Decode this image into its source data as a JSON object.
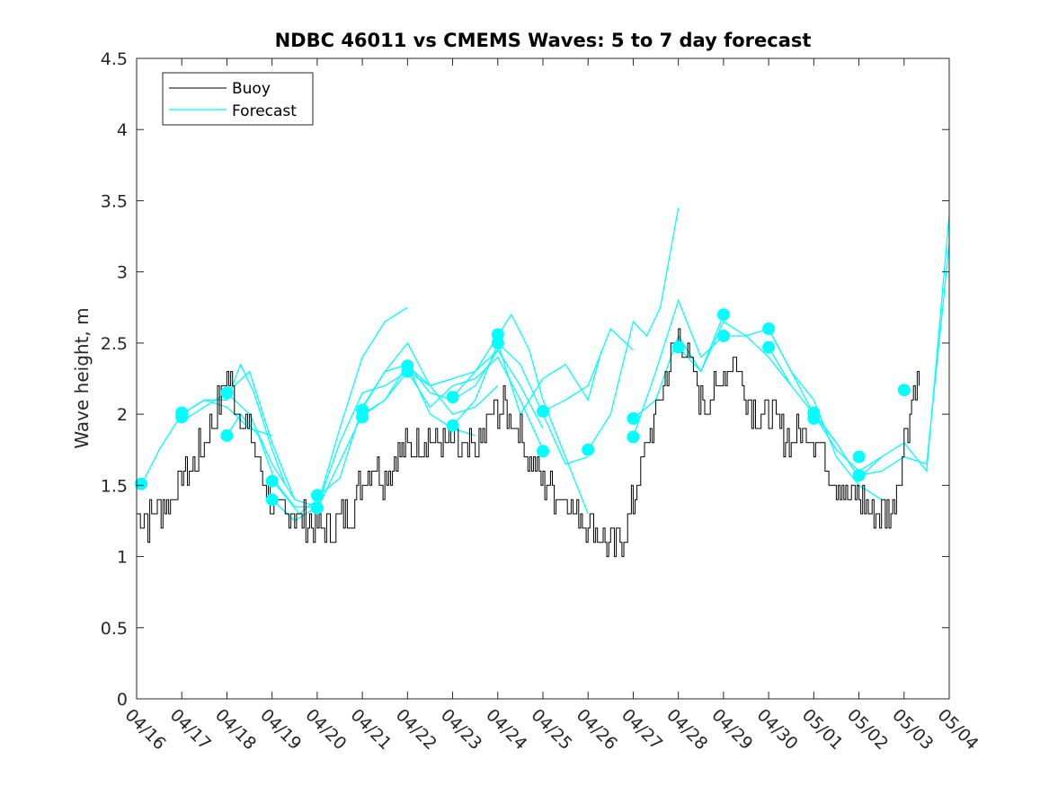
{
  "chart_data": {
    "type": "line",
    "title": "NDBC 46011 vs CMEMS Waves: 5 to 7 day forecast",
    "xlabel": "",
    "ylabel": "Wave height, m",
    "xlim": [
      "04/16",
      "05/04"
    ],
    "ylim": [
      0,
      4.5
    ],
    "x_tick_labels": [
      "04/16",
      "04/17",
      "04/18",
      "04/19",
      "04/20",
      "04/21",
      "04/22",
      "04/23",
      "04/24",
      "04/25",
      "04/26",
      "04/27",
      "04/28",
      "04/29",
      "04/30",
      "05/01",
      "05/02",
      "05/03",
      "05/04"
    ],
    "y_ticks": [
      0,
      0.5,
      1,
      1.5,
      2,
      2.5,
      3,
      3.5,
      4,
      4.5
    ],
    "y_tick_labels": [
      "0",
      "0.5",
      "1",
      "1.5",
      "2",
      "2.5",
      "3",
      "3.5",
      "4",
      "4.5"
    ],
    "grid": false,
    "legend_position": "top-left",
    "colors": {
      "buoy": "#000000",
      "forecast": "#00ffff"
    },
    "series": [
      {
        "name": "Buoy",
        "color": "#000000",
        "x_days_after_04_16": [
          0,
          0.25,
          0.5,
          0.75,
          1,
          1.25,
          1.5,
          1.75,
          2,
          2.1,
          2.25,
          2.5,
          2.75,
          3,
          3.25,
          3.5,
          3.75,
          4,
          4.25,
          4.5,
          4.75,
          5,
          5.25,
          5.5,
          5.75,
          6,
          6.25,
          6.5,
          6.75,
          7,
          7.25,
          7.5,
          7.75,
          8,
          8.25,
          8.5,
          8.75,
          9,
          9.25,
          9.5,
          9.75,
          10,
          10.25,
          10.5,
          10.75,
          11,
          11.25,
          11.5,
          11.75,
          12,
          12.25,
          12.5,
          12.75,
          13,
          13.25,
          13.5,
          13.75,
          14,
          14.25,
          14.5,
          14.75,
          15,
          15.25,
          15.5,
          15.75,
          16,
          16.25,
          16.5,
          16.75,
          17,
          17.25,
          17.5,
          17.75,
          18
        ],
        "y": [
          1.3,
          1.25,
          1.35,
          1.4,
          1.55,
          1.65,
          1.8,
          2.0,
          2.3,
          2.2,
          2.05,
          1.85,
          1.6,
          1.35,
          1.3,
          1.3,
          1.25,
          1.2,
          1.2,
          1.25,
          1.3,
          1.55,
          1.65,
          1.55,
          1.7,
          1.75,
          1.8,
          1.85,
          1.8,
          1.8,
          1.7,
          1.75,
          1.9,
          2.05,
          2.0,
          1.85,
          1.65,
          1.55,
          1.45,
          1.4,
          1.3,
          1.25,
          1.15,
          1.05,
          1.1,
          1.4,
          1.75,
          2.0,
          2.3,
          2.55,
          2.35,
          2.1,
          2.1,
          2.3,
          2.4,
          2.15,
          2.0,
          2.0,
          1.9,
          1.8,
          1.9,
          1.85,
          1.7,
          1.55,
          1.45,
          1.4,
          1.35,
          1.3,
          1.3,
          1.85,
          2.2,
          2.3,
          null,
          null
        ]
      },
      {
        "name": "Forecast",
        "color": "#00ffff",
        "segments": [
          {
            "x": [
              0.1,
              0.5,
              1.0,
              1.5,
              2.0,
              2.5,
              3.0
            ],
            "y": [
              1.5,
              1.75,
              2.0,
              2.1,
              2.05,
              1.9,
              1.85
            ]
          },
          {
            "x": [
              1.0,
              1.5,
              2.0,
              2.3,
              2.6,
              3.0,
              3.3
            ],
            "y": [
              2.0,
              2.1,
              2.1,
              2.35,
              2.15,
              1.75,
              1.5
            ]
          },
          {
            "x": [
              1.0,
              1.5,
              2.0,
              2.5,
              3.0,
              3.5
            ],
            "y": [
              1.95,
              2.05,
              2.15,
              2.0,
              1.65,
              1.4
            ]
          },
          {
            "x": [
              2.0,
              2.5,
              3.0,
              3.5,
              4.0
            ],
            "y": [
              2.15,
              2.3,
              1.8,
              1.4,
              1.35
            ]
          },
          {
            "x": [
              2.0,
              2.3,
              2.7,
              3.1,
              3.6,
              4.0
            ],
            "y": [
              1.85,
              2.0,
              1.85,
              1.5,
              1.3,
              1.4
            ]
          },
          {
            "x": [
              3.0,
              3.5,
              4.0,
              4.5,
              5.0,
              5.5,
              6.0
            ],
            "y": [
              1.55,
              1.35,
              1.35,
              1.9,
              2.4,
              2.65,
              2.75
            ]
          },
          {
            "x": [
              3.0,
              3.5,
              4.0,
              4.5,
              5.0,
              5.5,
              6.0
            ],
            "y": [
              1.4,
              1.25,
              1.35,
              1.8,
              2.15,
              2.2,
              2.3
            ]
          },
          {
            "x": [
              4.0,
              4.5,
              5.0,
              5.5,
              6.0,
              6.5,
              7.0
            ],
            "y": [
              1.42,
              1.55,
              2.05,
              2.3,
              2.5,
              2.2,
              2.25
            ]
          },
          {
            "x": [
              4.0,
              4.4,
              5.0,
              5.5,
              6.0,
              6.5,
              7.0,
              7.5
            ],
            "y": [
              1.33,
              1.6,
              2.0,
              2.1,
              2.35,
              2.0,
              1.9,
              1.85
            ]
          },
          {
            "x": [
              5.0,
              5.5,
              6.0,
              6.5,
              7.0,
              7.5,
              8.0
            ],
            "y": [
              2.04,
              2.3,
              2.35,
              2.15,
              2.1,
              2.2,
              2.45
            ]
          },
          {
            "x": [
              5.0,
              5.5,
              6.0,
              6.5,
              7.0,
              7.5,
              8.0
            ],
            "y": [
              1.99,
              2.1,
              2.3,
              2.2,
              2.0,
              2.05,
              2.2
            ]
          },
          {
            "x": [
              6.0,
              6.5,
              7.0,
              7.5,
              8.0,
              8.5,
              9.0
            ],
            "y": [
              2.34,
              2.2,
              2.25,
              2.3,
              2.45,
              2.2,
              1.9
            ]
          },
          {
            "x": [
              6.0,
              6.5,
              7.0,
              7.5,
              8.0,
              8.5,
              9.0
            ],
            "y": [
              2.3,
              2.05,
              2.2,
              2.25,
              2.4,
              2.1,
              1.75
            ]
          },
          {
            "x": [
              7.0,
              7.5,
              8.0,
              8.3,
              8.7,
              9.0,
              9.5,
              10.0
            ],
            "y": [
              2.12,
              2.3,
              2.55,
              2.7,
              2.45,
              2.1,
              1.7,
              1.3
            ]
          },
          {
            "x": [
              7.0,
              7.5,
              8.0,
              8.5,
              9.0,
              9.5,
              10.0
            ],
            "y": [
              1.92,
              2.1,
              2.5,
              2.35,
              2.0,
              1.65,
              1.7
            ]
          },
          {
            "x": [
              8.0,
              8.5,
              9.0,
              9.5,
              10.0,
              10.3
            ],
            "y": [
              2.5,
              2.0,
              2.25,
              2.35,
              2.1,
              2.45
            ]
          },
          {
            "x": [
              9.0,
              9.5,
              10.0,
              10.5,
              11.0
            ],
            "y": [
              2.02,
              2.1,
              2.2,
              2.6,
              2.45
            ]
          },
          {
            "x": [
              10.0,
              10.5,
              11.0,
              11.3,
              11.6,
              12.0
            ],
            "y": [
              1.75,
              2.0,
              2.65,
              2.55,
              2.75,
              3.45
            ]
          },
          {
            "x": [
              11.0,
              11.5,
              12.0,
              12.5,
              13.0
            ],
            "y": [
              1.97,
              2.1,
              2.55,
              2.3,
              2.7
            ]
          },
          {
            "x": [
              11.0,
              11.5,
              12.0,
              12.5,
              13.0
            ],
            "y": [
              1.84,
              2.3,
              2.8,
              2.4,
              2.55
            ]
          },
          {
            "x": [
              12.0,
              12.5,
              13.0,
              13.5,
              14.0,
              14.5
            ],
            "y": [
              2.47,
              2.3,
              2.65,
              2.55,
              2.4,
              2.2
            ]
          },
          {
            "x": [
              13.0,
              13.5,
              14.0,
              14.5,
              15.0,
              15.5
            ],
            "y": [
              2.55,
              2.55,
              2.6,
              2.3,
              2.0,
              1.8
            ]
          },
          {
            "x": [
              14.0,
              14.5,
              15.0,
              15.5,
              16.0,
              16.5
            ],
            "y": [
              2.6,
              2.3,
              2.1,
              1.7,
              1.5,
              1.4
            ]
          },
          {
            "x": [
              14.0,
              14.5,
              15.0,
              15.5,
              16.0,
              16.5
            ],
            "y": [
              2.47,
              2.2,
              2.0,
              1.75,
              1.6,
              1.7
            ]
          },
          {
            "x": [
              15.0,
              15.5,
              16.0,
              16.5,
              17.0,
              17.5,
              18.0
            ],
            "y": [
              2.01,
              1.8,
              1.55,
              1.7,
              1.8,
              1.6,
              3.4
            ]
          },
          {
            "x": [
              16.0,
              16.5,
              17.0,
              17.5,
              18.0
            ],
            "y": [
              1.57,
              1.6,
              1.7,
              1.65,
              3.2
            ]
          }
        ],
        "markers": {
          "x": [
            0.1,
            1.0,
            1.0,
            2.0,
            2.0,
            3.0,
            3.0,
            4.0,
            4.0,
            5.0,
            5.0,
            6.0,
            6.0,
            7.0,
            7.0,
            8.0,
            8.0,
            9.0,
            9.0,
            10.0,
            11.0,
            11.0,
            12.0,
            13.0,
            13.0,
            14.0,
            14.0,
            15.0,
            15.0,
            16.0,
            16.0,
            17.0
          ],
          "y": [
            1.51,
            2.01,
            1.98,
            2.15,
            1.85,
            1.53,
            1.4,
            1.43,
            1.34,
            2.03,
            1.98,
            2.34,
            2.3,
            2.12,
            1.92,
            2.56,
            2.5,
            2.02,
            1.74,
            1.75,
            1.97,
            1.84,
            2.47,
            2.7,
            2.55,
            2.6,
            2.47,
            2.01,
            1.97,
            1.7,
            1.57,
            2.17
          ]
        }
      }
    ]
  },
  "legend": {
    "buoy_label": "Buoy",
    "forecast_label": "Forecast"
  }
}
